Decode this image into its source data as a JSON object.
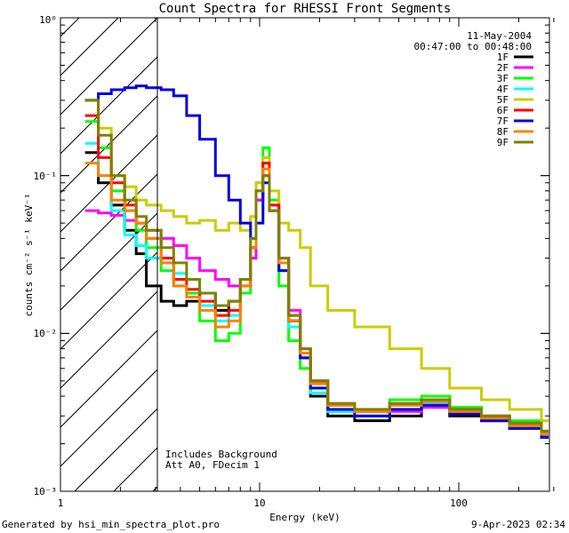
{
  "chart_data": {
    "type": "line",
    "title": "Count Spectra for RHESSI Front Segments",
    "xlabel": "Energy (keV)",
    "ylabel": "counts cm⁻² s⁻¹ keV⁻¹",
    "xscale": "log",
    "yscale": "log",
    "xlim": [
      1,
      300
    ],
    "ylim": [
      0.001,
      1
    ],
    "x_ticks": [
      {
        "value": 1,
        "label": "1"
      },
      {
        "value": 10,
        "label": "10"
      },
      {
        "value": 100,
        "label": "100"
      }
    ],
    "y_ticks": [
      {
        "value": 0.001,
        "label": "10⁻³"
      },
      {
        "value": 0.01,
        "label": "10⁻²"
      },
      {
        "value": 0.1,
        "label": "10⁻¹"
      },
      {
        "value": 1,
        "label": "10⁰"
      }
    ],
    "shaded_region": {
      "x": [
        1,
        3
      ],
      "pattern": "diagonal-hatch"
    },
    "legend_position": "top-right",
    "date": "11-May-2004",
    "time_range": "00:47:00 to 00:48:00",
    "annotations": [
      "Includes Background",
      "Att A0, FDecim 1"
    ],
    "series": [
      {
        "name": "1F",
        "color": "#000000",
        "points": [
          [
            1.33,
            0.14
          ],
          [
            1.55,
            0.09
          ],
          [
            1.8,
            0.065
          ],
          [
            2.1,
            0.045
          ],
          [
            2.4,
            0.032
          ],
          [
            2.7,
            0.02
          ],
          [
            3.2,
            0.016
          ],
          [
            3.7,
            0.015
          ],
          [
            4.3,
            0.016
          ],
          [
            5.0,
            0.018
          ],
          [
            6.0,
            0.014
          ],
          [
            7.0,
            0.016
          ],
          [
            8.0,
            0.022
          ],
          [
            9.0,
            0.03
          ],
          [
            9.6,
            0.07
          ],
          [
            10.4,
            0.1
          ],
          [
            11.2,
            0.06
          ],
          [
            12.5,
            0.025
          ],
          [
            14.0,
            0.012
          ],
          [
            16.0,
            0.007
          ],
          [
            18.0,
            0.004
          ],
          [
            22.0,
            0.003
          ],
          [
            30.0,
            0.0028
          ],
          [
            45.0,
            0.003
          ],
          [
            65.0,
            0.0035
          ],
          [
            90.0,
            0.003
          ],
          [
            130.0,
            0.0028
          ],
          [
            180.0,
            0.0025
          ],
          [
            260.0,
            0.0022
          ]
        ]
      },
      {
        "name": "2F",
        "color": "#ff00ff",
        "points": [
          [
            1.33,
            0.06
          ],
          [
            1.55,
            0.058
          ],
          [
            1.8,
            0.056
          ],
          [
            2.1,
            0.052
          ],
          [
            2.4,
            0.05
          ],
          [
            2.7,
            0.045
          ],
          [
            3.2,
            0.04
          ],
          [
            3.7,
            0.036
          ],
          [
            4.3,
            0.03
          ],
          [
            5.0,
            0.025
          ],
          [
            6.0,
            0.022
          ],
          [
            7.0,
            0.02
          ],
          [
            8.0,
            0.022
          ],
          [
            9.0,
            0.03
          ],
          [
            9.6,
            0.07
          ],
          [
            10.4,
            0.12
          ],
          [
            11.2,
            0.065
          ],
          [
            12.5,
            0.03
          ],
          [
            14.0,
            0.014
          ],
          [
            16.0,
            0.008
          ],
          [
            18.0,
            0.005
          ],
          [
            22.0,
            0.0032
          ],
          [
            30.0,
            0.003
          ],
          [
            45.0,
            0.0032
          ],
          [
            65.0,
            0.0034
          ],
          [
            90.0,
            0.0031
          ],
          [
            130.0,
            0.0028
          ],
          [
            180.0,
            0.0026
          ],
          [
            260.0,
            0.0023
          ]
        ]
      },
      {
        "name": "3F",
        "color": "#00ff00",
        "points": [
          [
            1.33,
            0.22
          ],
          [
            1.55,
            0.15
          ],
          [
            1.8,
            0.08
          ],
          [
            2.1,
            0.06
          ],
          [
            2.4,
            0.045
          ],
          [
            2.7,
            0.035
          ],
          [
            3.2,
            0.025
          ],
          [
            3.7,
            0.02
          ],
          [
            4.3,
            0.018
          ],
          [
            5.0,
            0.012
          ],
          [
            6.0,
            0.009
          ],
          [
            7.0,
            0.01
          ],
          [
            8.0,
            0.018
          ],
          [
            9.0,
            0.04
          ],
          [
            9.6,
            0.09
          ],
          [
            10.4,
            0.15
          ],
          [
            11.2,
            0.07
          ],
          [
            12.5,
            0.02
          ],
          [
            14.0,
            0.009
          ],
          [
            16.0,
            0.006
          ],
          [
            18.0,
            0.0045
          ],
          [
            22.0,
            0.0035
          ],
          [
            30.0,
            0.0033
          ],
          [
            45.0,
            0.0038
          ],
          [
            65.0,
            0.004
          ],
          [
            90.0,
            0.0034
          ],
          [
            130.0,
            0.003
          ],
          [
            180.0,
            0.0028
          ],
          [
            260.0,
            0.0024
          ]
        ]
      },
      {
        "name": "4F",
        "color": "#00ffff",
        "points": [
          [
            1.33,
            0.16
          ],
          [
            1.55,
            0.1
          ],
          [
            1.8,
            0.06
          ],
          [
            2.1,
            0.042
          ],
          [
            2.4,
            0.036
          ],
          [
            2.7,
            0.03
          ],
          [
            3.2,
            0.028
          ],
          [
            3.7,
            0.024
          ],
          [
            4.3,
            0.022
          ],
          [
            5.0,
            0.015
          ],
          [
            6.0,
            0.012
          ],
          [
            7.0,
            0.013
          ],
          [
            8.0,
            0.02
          ],
          [
            9.0,
            0.035
          ],
          [
            9.6,
            0.08
          ],
          [
            10.4,
            0.13
          ],
          [
            11.2,
            0.06
          ],
          [
            12.5,
            0.025
          ],
          [
            14.0,
            0.011
          ],
          [
            16.0,
            0.007
          ],
          [
            18.0,
            0.0042
          ],
          [
            22.0,
            0.0032
          ],
          [
            30.0,
            0.003
          ],
          [
            45.0,
            0.0033
          ],
          [
            65.0,
            0.0036
          ],
          [
            90.0,
            0.0032
          ],
          [
            130.0,
            0.0029
          ],
          [
            180.0,
            0.0026
          ],
          [
            260.0,
            0.0023
          ]
        ]
      },
      {
        "name": "5F",
        "color": "#cccc00",
        "points": [
          [
            1.33,
            0.3
          ],
          [
            1.55,
            0.2
          ],
          [
            1.8,
            0.1
          ],
          [
            2.1,
            0.085
          ],
          [
            2.4,
            0.07
          ],
          [
            2.7,
            0.065
          ],
          [
            3.2,
            0.06
          ],
          [
            3.7,
            0.055
          ],
          [
            4.3,
            0.05
          ],
          [
            5.0,
            0.052
          ],
          [
            6.0,
            0.045
          ],
          [
            7.0,
            0.05
          ],
          [
            8.0,
            0.045
          ],
          [
            9.0,
            0.055
          ],
          [
            9.6,
            0.09
          ],
          [
            10.4,
            0.13
          ],
          [
            11.2,
            0.08
          ],
          [
            12.5,
            0.05
          ],
          [
            14.0,
            0.045
          ],
          [
            16.0,
            0.035
          ],
          [
            18.0,
            0.02
          ],
          [
            22.0,
            0.014
          ],
          [
            30.0,
            0.011
          ],
          [
            45.0,
            0.008
          ],
          [
            65.0,
            0.006
          ],
          [
            90.0,
            0.0045
          ],
          [
            130.0,
            0.0038
          ],
          [
            180.0,
            0.0033
          ],
          [
            260.0,
            0.0028
          ]
        ]
      },
      {
        "name": "6F",
        "color": "#ff0000",
        "points": [
          [
            1.33,
            0.24
          ],
          [
            1.55,
            0.13
          ],
          [
            1.8,
            0.09
          ],
          [
            2.1,
            0.065
          ],
          [
            2.4,
            0.05
          ],
          [
            2.7,
            0.04
          ],
          [
            3.2,
            0.03
          ],
          [
            3.7,
            0.022
          ],
          [
            4.3,
            0.019
          ],
          [
            5.0,
            0.016
          ],
          [
            6.0,
            0.013
          ],
          [
            7.0,
            0.014
          ],
          [
            8.0,
            0.02
          ],
          [
            9.0,
            0.035
          ],
          [
            9.6,
            0.08
          ],
          [
            10.4,
            0.12
          ],
          [
            11.2,
            0.065
          ],
          [
            12.5,
            0.03
          ],
          [
            14.0,
            0.013
          ],
          [
            16.0,
            0.008
          ],
          [
            18.0,
            0.005
          ],
          [
            22.0,
            0.0036
          ],
          [
            30.0,
            0.0032
          ],
          [
            45.0,
            0.0036
          ],
          [
            65.0,
            0.0038
          ],
          [
            90.0,
            0.0033
          ],
          [
            130.0,
            0.003
          ],
          [
            180.0,
            0.0027
          ],
          [
            260.0,
            0.0024
          ]
        ]
      },
      {
        "name": "7F",
        "color": "#0000dd",
        "points": [
          [
            1.33,
            0.3
          ],
          [
            1.55,
            0.33
          ],
          [
            1.8,
            0.35
          ],
          [
            2.1,
            0.36
          ],
          [
            2.4,
            0.37
          ],
          [
            2.7,
            0.36
          ],
          [
            3.2,
            0.35
          ],
          [
            3.7,
            0.32
          ],
          [
            4.3,
            0.24
          ],
          [
            5.0,
            0.17
          ],
          [
            6.0,
            0.1
          ],
          [
            7.0,
            0.07
          ],
          [
            8.0,
            0.05
          ],
          [
            9.0,
            0.04
          ],
          [
            9.6,
            0.05
          ],
          [
            10.4,
            0.09
          ],
          [
            11.2,
            0.06
          ],
          [
            12.5,
            0.025
          ],
          [
            14.0,
            0.012
          ],
          [
            16.0,
            0.007
          ],
          [
            18.0,
            0.0045
          ],
          [
            22.0,
            0.0033
          ],
          [
            30.0,
            0.003
          ],
          [
            45.0,
            0.0033
          ],
          [
            65.0,
            0.0035
          ],
          [
            90.0,
            0.0031
          ],
          [
            130.0,
            0.0028
          ],
          [
            180.0,
            0.0025
          ],
          [
            260.0,
            0.0022
          ]
        ]
      },
      {
        "name": "8F",
        "color": "#ff8000",
        "points": [
          [
            1.33,
            0.12
          ],
          [
            1.55,
            0.1
          ],
          [
            1.8,
            0.07
          ],
          [
            2.1,
            0.06
          ],
          [
            2.4,
            0.05
          ],
          [
            2.7,
            0.04
          ],
          [
            3.2,
            0.028
          ],
          [
            3.7,
            0.02
          ],
          [
            4.3,
            0.017
          ],
          [
            5.0,
            0.014
          ],
          [
            6.0,
            0.011
          ],
          [
            7.0,
            0.012
          ],
          [
            8.0,
            0.02
          ],
          [
            9.0,
            0.035
          ],
          [
            9.6,
            0.08
          ],
          [
            10.4,
            0.11
          ],
          [
            11.2,
            0.06
          ],
          [
            12.5,
            0.028
          ],
          [
            14.0,
            0.012
          ],
          [
            16.0,
            0.0075
          ],
          [
            18.0,
            0.0048
          ],
          [
            22.0,
            0.0035
          ],
          [
            30.0,
            0.0032
          ],
          [
            45.0,
            0.0035
          ],
          [
            65.0,
            0.0037
          ],
          [
            90.0,
            0.0032
          ],
          [
            130.0,
            0.0029
          ],
          [
            180.0,
            0.0026
          ],
          [
            260.0,
            0.0023
          ]
        ]
      },
      {
        "name": "9F",
        "color": "#808000",
        "points": [
          [
            1.33,
            0.3
          ],
          [
            1.55,
            0.18
          ],
          [
            1.8,
            0.1
          ],
          [
            2.1,
            0.07
          ],
          [
            2.4,
            0.055
          ],
          [
            2.7,
            0.045
          ],
          [
            3.2,
            0.035
          ],
          [
            3.7,
            0.028
          ],
          [
            4.3,
            0.022
          ],
          [
            5.0,
            0.018
          ],
          [
            6.0,
            0.015
          ],
          [
            7.0,
            0.016
          ],
          [
            8.0,
            0.022
          ],
          [
            9.0,
            0.04
          ],
          [
            9.6,
            0.08
          ],
          [
            10.4,
            0.1
          ],
          [
            11.2,
            0.06
          ],
          [
            12.5,
            0.03
          ],
          [
            14.0,
            0.013
          ],
          [
            16.0,
            0.008
          ],
          [
            18.0,
            0.005
          ],
          [
            22.0,
            0.0036
          ],
          [
            30.0,
            0.0033
          ],
          [
            45.0,
            0.0036
          ],
          [
            65.0,
            0.0038
          ],
          [
            90.0,
            0.0033
          ],
          [
            130.0,
            0.003
          ],
          [
            180.0,
            0.0027
          ],
          [
            260.0,
            0.0024
          ]
        ]
      }
    ]
  },
  "footer": {
    "generated_by": "Generated by hsi_min_spectra_plot.pro",
    "timestamp": "9-Apr-2023 02:34"
  }
}
